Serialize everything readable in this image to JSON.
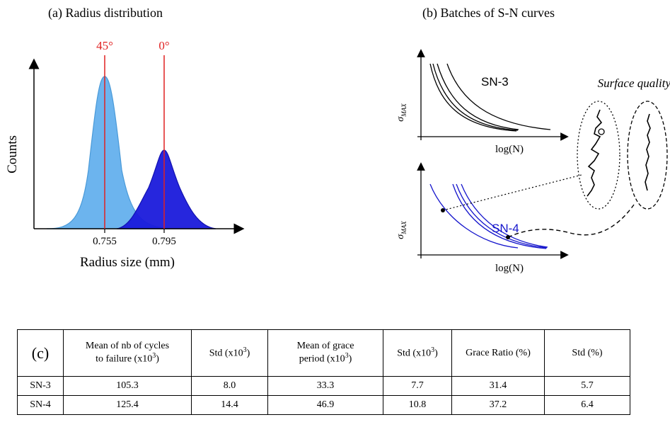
{
  "panel_a": {
    "title": "(a)  Radius distribution",
    "ylabel": "Counts",
    "xlabel": "Radius size (mm)",
    "ticks": [
      "0.755",
      "0.795"
    ],
    "markers": [
      "45°",
      "0°"
    ],
    "colors": {
      "light": "#6cb4ee",
      "dark": "#1a1adb",
      "marker": "#e02020"
    }
  },
  "panel_b": {
    "title": "(b)  Batches of S-N curves",
    "ylabel_sym": "σ",
    "ylabel_sub": "MAX",
    "xlabel": "log(N)",
    "sn3_label": "SN-3",
    "sn4_label": "SN-4",
    "surface_label": "Surface quality",
    "colors": {
      "sn3": "#000000",
      "sn4": "#1515cc"
    }
  },
  "table": {
    "label": "(c)",
    "headers": [
      {
        "line1": "Mean of nb of cycles",
        "line2": "to failure (x10",
        "sup": "3",
        "tail": ")"
      },
      {
        "line1": "",
        "line2": "Std (x10",
        "sup": "3",
        "tail": ")"
      },
      {
        "line1": "Mean of grace",
        "line2": "period (x10",
        "sup": "3",
        "tail": ")"
      },
      {
        "line1": "",
        "line2": "Std (x10",
        "sup": "3",
        "tail": ")"
      },
      {
        "line1": "",
        "line2": "Grace Ratio  (%)",
        "sup": "",
        "tail": ""
      },
      {
        "line1": "",
        "line2": "Std (%)",
        "sup": "",
        "tail": ""
      }
    ],
    "rows": [
      {
        "name": "SN-3",
        "values": [
          "105.3",
          "8.0",
          "33.3",
          "7.7",
          "31.4",
          "5.7"
        ]
      },
      {
        "name": "SN-4",
        "values": [
          "125.4",
          "14.4",
          "46.9",
          "10.8",
          "37.2",
          "6.4"
        ]
      }
    ]
  }
}
